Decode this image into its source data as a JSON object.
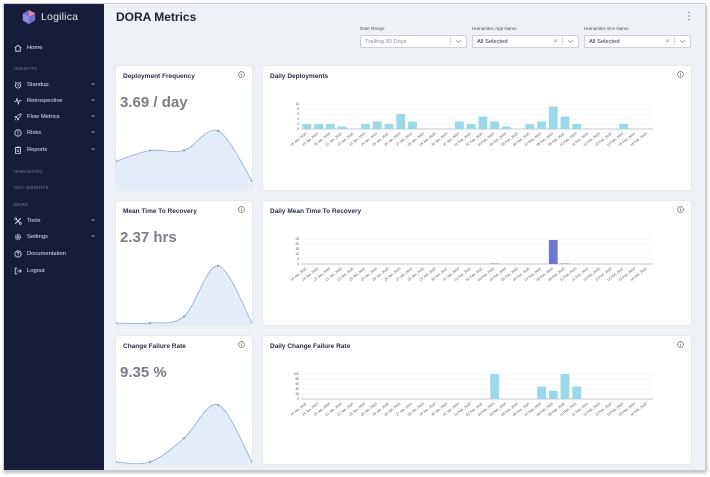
{
  "app": {
    "name": "Logilica"
  },
  "sidebar": {
    "home": "Home",
    "sections": {
      "insights": "INSIGHTS",
      "humanitec": "HUMANITEC",
      "adv_insights": "ADV INSIGHTS",
      "more": "MORE"
    },
    "items": [
      {
        "label": "Standup",
        "icon": "standup-clock"
      },
      {
        "label": "Retrospective",
        "icon": "pulse"
      },
      {
        "label": "Flow Metrics",
        "icon": "rocket"
      },
      {
        "label": "Risks",
        "icon": "alert"
      },
      {
        "label": "Reports",
        "icon": "clipboard"
      }
    ],
    "more_items": [
      {
        "label": "Tools",
        "icon": "tools"
      },
      {
        "label": "Settings",
        "icon": "gear"
      },
      {
        "label": "Documentation",
        "icon": "question"
      },
      {
        "label": "Logout",
        "icon": "logout"
      }
    ]
  },
  "header": {
    "title": "DORA Metrics"
  },
  "filters": {
    "date_range": {
      "label": "Date Range",
      "value": "Trailing 30 Days"
    },
    "app_name": {
      "label": "Humanitec App Name",
      "value": "All Selected"
    },
    "env_name": {
      "label": "Humanitec Env Name",
      "value": "All Selected"
    }
  },
  "cards": {
    "deployment_frequency": {
      "title": "Deployment Frequency",
      "value": "3.69 / day"
    },
    "mttr": {
      "title": "Mean Time To Recovery",
      "value": "2.37 hrs"
    },
    "cfr": {
      "title": "Change Failure Rate",
      "value": "9.35 %"
    },
    "daily_deployments": {
      "title": "Daily Deployments"
    },
    "daily_mttr": {
      "title": "Daily Mean Time To Recovery"
    },
    "daily_cfr": {
      "title": "Daily Change Failure Rate"
    }
  },
  "colors": {
    "sidebar": "#161c3a",
    "bar": "#9ad9ea",
    "bar_dark": "#6d79cf",
    "spark_fill": "#e4edf7",
    "spark_line": "#90acd2"
  },
  "chart_data": [
    {
      "id": "daily_deployments",
      "type": "bar",
      "title": "Daily Deployments",
      "categories": [
        "18 Jan, 2020",
        "19 Jan, 2020",
        "20 Jan, 2020",
        "21 Jan, 2020",
        "22 Jan, 2020",
        "23 Jan, 2020",
        "24 Jan, 2020",
        "25 Jan, 2020",
        "26 Jan, 2020",
        "27 Jan, 2020",
        "28 Jan, 2020",
        "29 Jan, 2020",
        "30 Jan, 2020",
        "31 Jan, 2020",
        "01 Feb, 2020",
        "02 Feb, 2020",
        "03 Feb, 2020",
        "04 Feb, 2020",
        "05 Feb, 2020",
        "06 Feb, 2020",
        "07 Feb, 2020",
        "08 Feb, 2020",
        "09 Feb, 2020",
        "10 Feb, 2020",
        "11 Feb, 2020",
        "12 Feb, 2020",
        "13 Feb, 2020",
        "14 Feb, 2020",
        "15 Feb, 2020",
        "16 Feb, 2020"
      ],
      "values": [
        2,
        2,
        2,
        1,
        0,
        2,
        3,
        2,
        6,
        3,
        0,
        0,
        0,
        3,
        2,
        5,
        3,
        1,
        0,
        2,
        3,
        9,
        5,
        2,
        0,
        0,
        0,
        2,
        0,
        0
      ],
      "yticks": [
        0,
        2,
        4,
        6,
        8,
        10
      ],
      "ylim": [
        0,
        10
      ],
      "color": "#9ad9ea"
    },
    {
      "id": "daily_mttr",
      "type": "bar",
      "title": "Daily Mean Time To Recovery",
      "categories": [
        "18 Jan, 2020",
        "19 Jan, 2020",
        "20 Jan, 2020",
        "21 Jan, 2020",
        "22 Jan, 2020",
        "23 Jan, 2020",
        "24 Jan, 2020",
        "25 Jan, 2020",
        "26 Jan, 2020",
        "27 Jan, 2020",
        "28 Jan, 2020",
        "29 Jan, 2020",
        "30 Jan, 2020",
        "31 Jan, 2020",
        "01 Feb, 2020",
        "02 Feb, 2020",
        "03 Feb, 2020",
        "04 Feb, 2020",
        "05 Feb, 2020",
        "06 Feb, 2020",
        "07 Feb, 2020",
        "08 Feb, 2020",
        "09 Feb, 2020",
        "10 Feb, 2020",
        "11 Feb, 2020",
        "12 Feb, 2020",
        "13 Feb, 2020",
        "14 Feb, 2020",
        "15 Feb, 2020",
        "16 Feb, 2020"
      ],
      "values": [
        0,
        0,
        0,
        0,
        0,
        0,
        0,
        0,
        0,
        0,
        0,
        0,
        0,
        0,
        0,
        0,
        0.5,
        0,
        0,
        0,
        0,
        24,
        0.5,
        0,
        0,
        0,
        0,
        0,
        0,
        0
      ],
      "yticks": [
        0,
        5,
        10,
        15,
        20,
        25
      ],
      "ylim": [
        0,
        25
      ],
      "color": "#6d79cf"
    },
    {
      "id": "daily_cfr",
      "type": "bar",
      "title": "Daily Change Failure Rate",
      "categories": [
        "18 Jan, 2020",
        "19 Jan, 2020",
        "20 Jan, 2020",
        "21 Jan, 2020",
        "22 Jan, 2020",
        "23 Jan, 2020",
        "24 Jan, 2020",
        "25 Jan, 2020",
        "26 Jan, 2020",
        "27 Jan, 2020",
        "28 Jan, 2020",
        "29 Jan, 2020",
        "30 Jan, 2020",
        "31 Jan, 2020",
        "01 Feb, 2020",
        "02 Feb, 2020",
        "03 Feb, 2020",
        "04 Feb, 2020",
        "05 Feb, 2020",
        "06 Feb, 2020",
        "07 Feb, 2020",
        "08 Feb, 2020",
        "09 Feb, 2020",
        "10 Feb, 2020",
        "11 Feb, 2020",
        "12 Feb, 2020",
        "13 Feb, 2020",
        "14 Feb, 2020",
        "15 Feb, 2020",
        "16 Feb, 2020"
      ],
      "values": [
        0,
        0,
        0,
        0,
        0,
        0,
        0,
        0,
        0,
        0,
        0,
        0,
        0,
        0,
        0,
        0,
        100,
        0,
        0,
        0,
        50,
        33,
        100,
        50,
        0,
        0,
        0,
        0,
        0,
        0
      ],
      "yticks": [
        0,
        20,
        40,
        60,
        80,
        100
      ],
      "ylim": [
        0,
        100
      ],
      "color": "#9ad9ea"
    }
  ],
  "spark_data": {
    "deployment_frequency": [
      1.5,
      2.1,
      2.1,
      3.2,
      0.4
    ],
    "mttr": [
      0.0,
      0.0,
      0.3,
      2.6,
      0.0
    ],
    "cfr": [
      0.0,
      0.0,
      1.5,
      3.6,
      0.0
    ]
  }
}
